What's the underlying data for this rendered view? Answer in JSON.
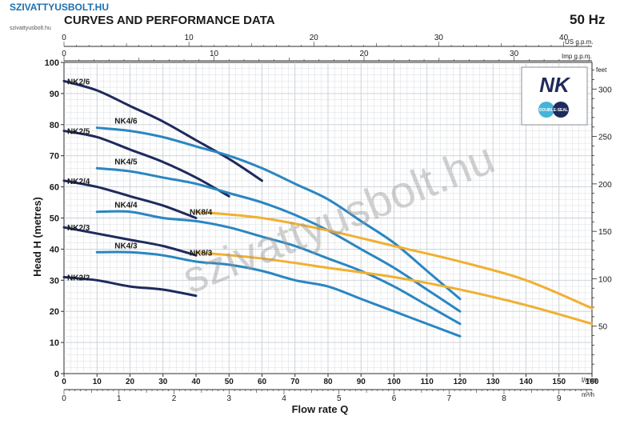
{
  "header": {
    "title": "CURVES AND PERFORMANCE DATA",
    "frequency": "50 Hz",
    "watermark_top": "SZIVATTYUSBOLT.HU",
    "watermark_sub": "szivattyusbolt.hu",
    "watermark_big": "szivattyusbolt.hu"
  },
  "logo": {
    "brand": "NK",
    "badge": "DOUBLE-SEAL"
  },
  "colors": {
    "nk2": "#1f2a5c",
    "nk4": "#2a86c2",
    "nk8": "#f0b030",
    "grid": "#c8ced6",
    "frame": "#2b2b2b",
    "text": "#1a1a1a"
  },
  "chart_data": {
    "type": "line",
    "xlabel": "Flow rate Q",
    "ylabel": "Head H (metres)",
    "x_unit": "l/min",
    "xlim": [
      0,
      160
    ],
    "ylim": [
      0,
      100
    ],
    "x_ticks": [
      0,
      10,
      20,
      30,
      40,
      50,
      60,
      70,
      80,
      90,
      100,
      110,
      120,
      130,
      140,
      150,
      160
    ],
    "y_ticks": [
      0,
      10,
      20,
      30,
      40,
      50,
      60,
      70,
      80,
      90,
      100
    ],
    "grid": true,
    "secondary_axes": {
      "m3h": {
        "unit": "m³/h",
        "ticks": [
          0,
          1,
          2,
          3,
          4,
          5,
          6,
          7,
          8,
          9
        ]
      },
      "us_gpm": {
        "unit": "US g.p.m.",
        "ticks": [
          0,
          10,
          20,
          30,
          40
        ]
      },
      "imp_gpm": {
        "unit": "Imp g.p.m.",
        "ticks": [
          0,
          10,
          20,
          30
        ]
      },
      "feet": {
        "unit": "feet",
        "ticks": [
          50,
          100,
          150,
          200,
          250,
          300
        ]
      }
    },
    "series": [
      {
        "name": "NK2/6",
        "family": "nk2",
        "x": [
          0,
          10,
          20,
          30,
          40,
          50,
          60
        ],
        "y": [
          94,
          91,
          86,
          81,
          75,
          69,
          62
        ]
      },
      {
        "name": "NK2/5",
        "family": "nk2",
        "x": [
          0,
          10,
          20,
          30,
          40,
          50
        ],
        "y": [
          78,
          76,
          72,
          68,
          63,
          57
        ]
      },
      {
        "name": "NK2/4",
        "family": "nk2",
        "x": [
          0,
          10,
          20,
          30,
          40
        ],
        "y": [
          62,
          60,
          57,
          54,
          50
        ]
      },
      {
        "name": "NK2/3",
        "family": "nk2",
        "x": [
          0,
          10,
          20,
          30,
          40
        ],
        "y": [
          47,
          45,
          43,
          41,
          38
        ]
      },
      {
        "name": "NK2/2",
        "family": "nk2",
        "x": [
          0,
          10,
          20,
          30,
          40
        ],
        "y": [
          31,
          30,
          28,
          27,
          25
        ]
      },
      {
        "name": "NK4/6",
        "family": "nk4",
        "x": [
          10,
          20,
          30,
          40,
          50,
          60,
          70,
          80,
          90,
          100,
          110,
          120
        ],
        "y": [
          79,
          78,
          76,
          73,
          70,
          66,
          61,
          56,
          49,
          42,
          33,
          24
        ]
      },
      {
        "name": "NK4/5",
        "family": "nk4",
        "x": [
          10,
          20,
          30,
          40,
          50,
          60,
          70,
          80,
          90,
          100,
          110,
          120
        ],
        "y": [
          66,
          65,
          63,
          61,
          58,
          55,
          51,
          46,
          40,
          34,
          27,
          20
        ]
      },
      {
        "name": "NK4/4",
        "family": "nk4",
        "x": [
          10,
          20,
          30,
          40,
          50,
          60,
          70,
          80,
          90,
          100,
          110,
          120
        ],
        "y": [
          52,
          52,
          50,
          49,
          47,
          44,
          41,
          37,
          33,
          28,
          22,
          16
        ]
      },
      {
        "name": "NK4/3",
        "family": "nk4",
        "x": [
          10,
          20,
          30,
          40,
          50,
          60,
          70,
          80,
          90,
          100,
          110,
          120
        ],
        "y": [
          39,
          39,
          38,
          36,
          35,
          33,
          30,
          28,
          24,
          20,
          16,
          12
        ]
      },
      {
        "name": "NK8/4",
        "family": "nk8",
        "x": [
          40,
          60,
          80,
          100,
          120,
          140,
          160
        ],
        "y": [
          52,
          50,
          46,
          41,
          36,
          30,
          21
        ]
      },
      {
        "name": "NK8/3",
        "family": "nk8",
        "x": [
          40,
          60,
          80,
          100,
          120,
          140,
          160
        ],
        "y": [
          39,
          37,
          34,
          31,
          27,
          22,
          16
        ]
      }
    ]
  }
}
